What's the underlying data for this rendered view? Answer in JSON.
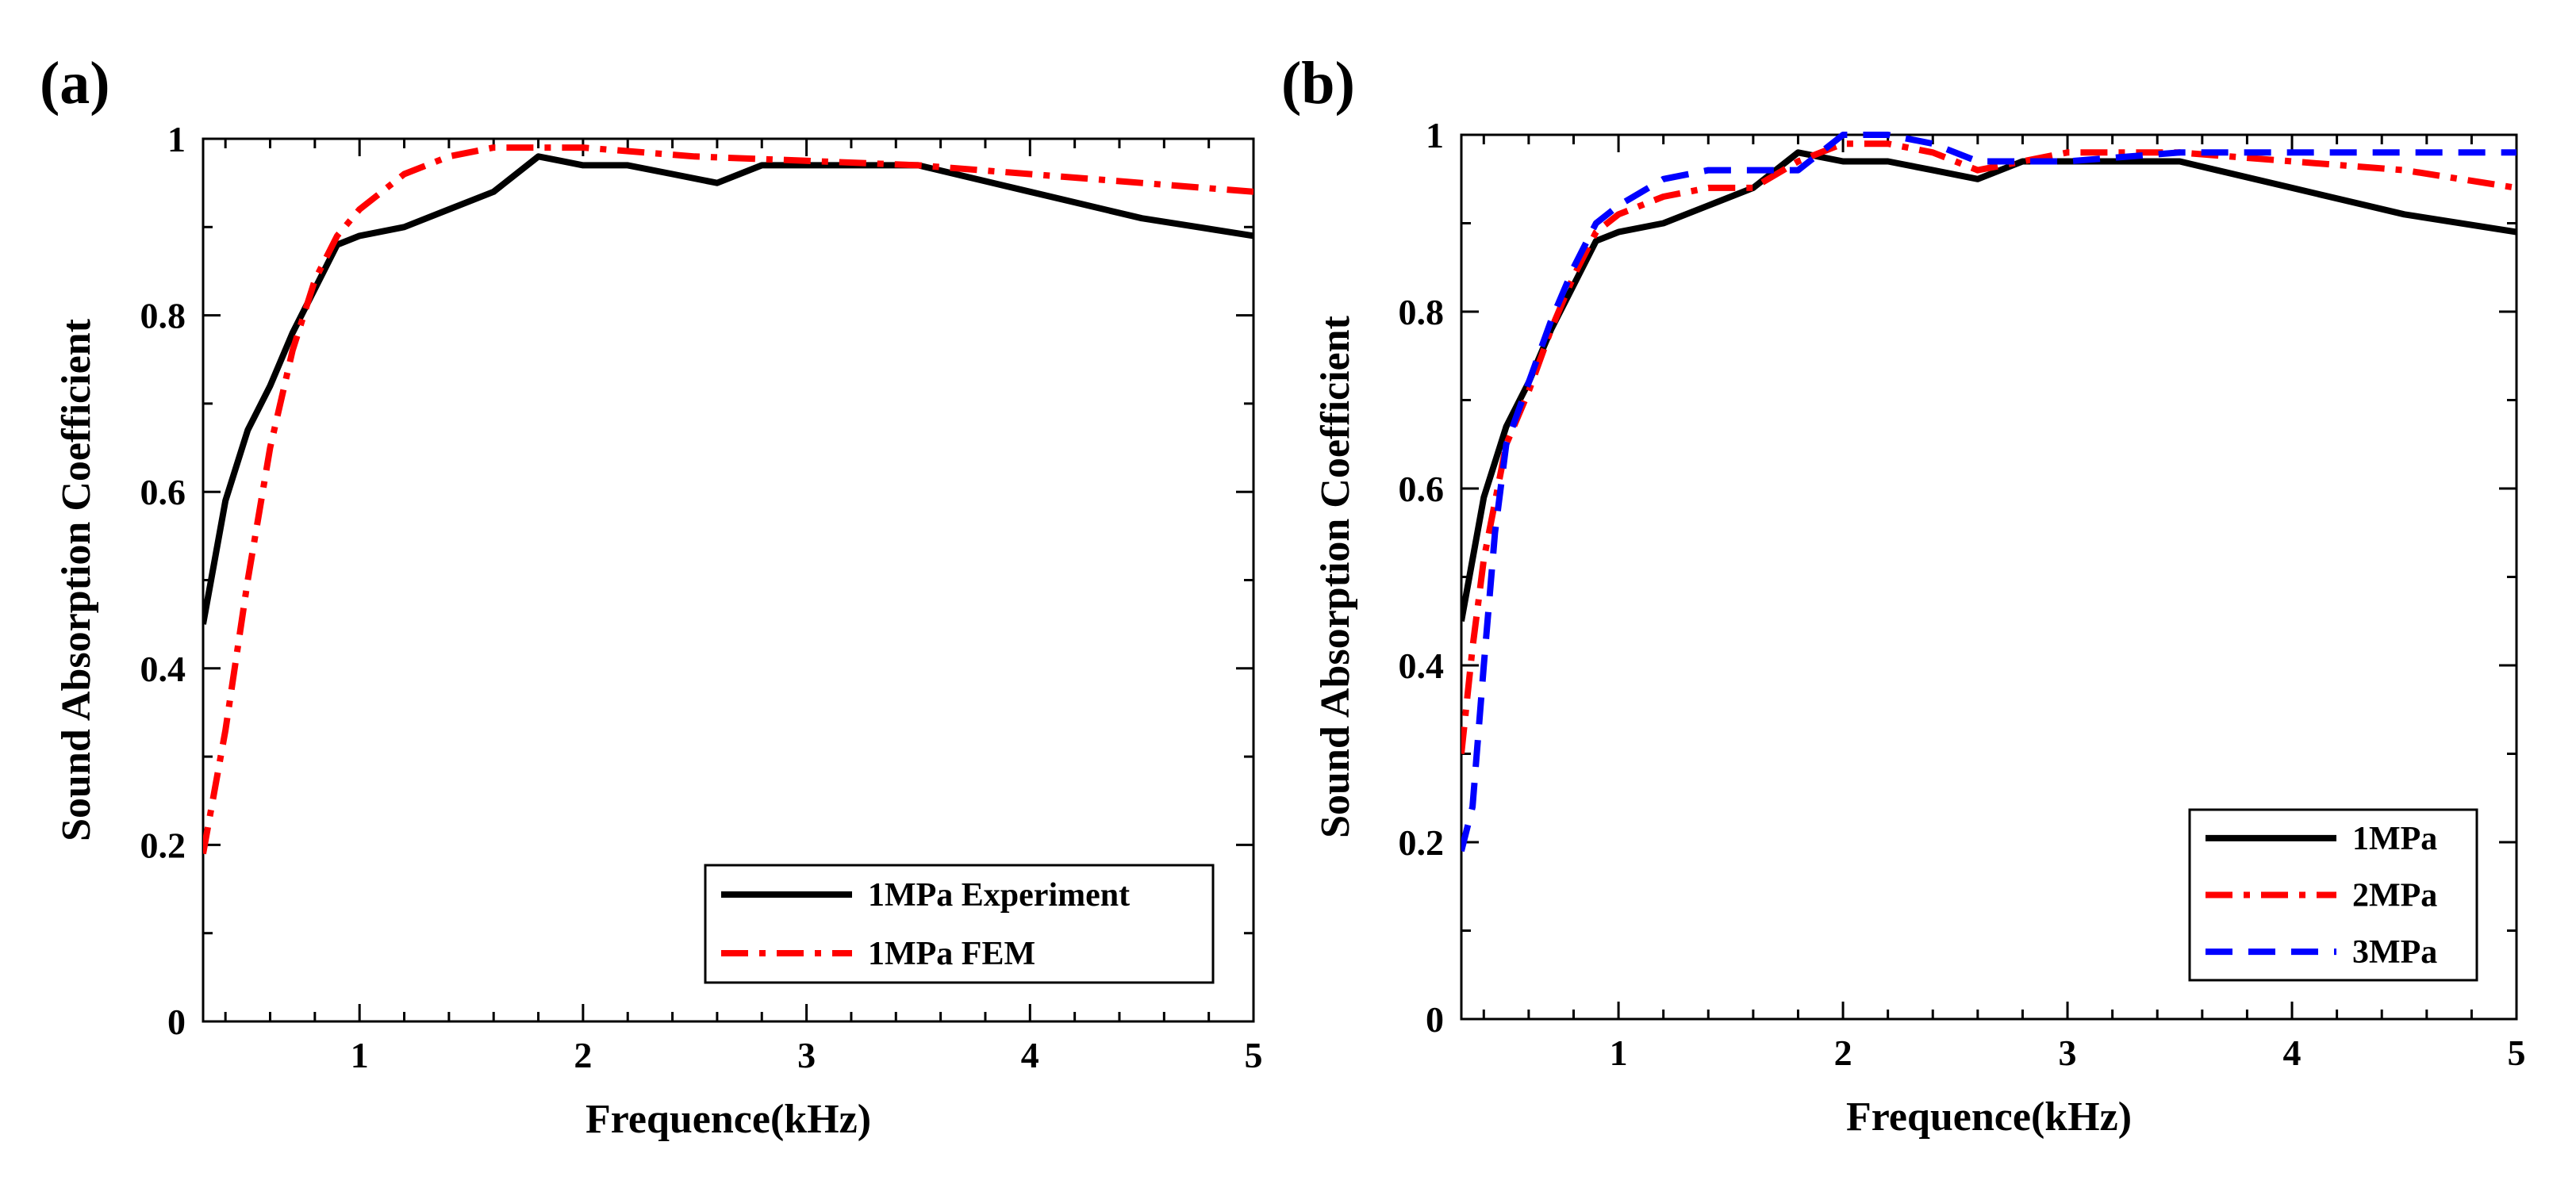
{
  "chart_data": [
    {
      "type": "line",
      "panel_label": "(a)",
      "xlabel": "Frequence(kHz)",
      "ylabel": "Sound Absorption Coefficient",
      "xlim": [
        0.3,
        5
      ],
      "ylim": [
        0,
        1
      ],
      "xticks": [
        1,
        2,
        3,
        4,
        5
      ],
      "yticks": [
        0,
        0.2,
        0.4,
        0.6,
        0.8,
        1
      ],
      "ytick_labels": [
        "0",
        "0.2",
        "0.4",
        "0.6",
        "0.8",
        "1"
      ],
      "legend_position": "bottom-right",
      "grid": false,
      "series": [
        {
          "name": "1MPa Experiment",
          "color": "#000000",
          "style": "solid",
          "x": [
            0.3,
            0.4,
            0.5,
            0.6,
            0.7,
            0.8,
            0.9,
            1.0,
            1.2,
            1.4,
            1.6,
            1.8,
            1.9,
            2.0,
            2.2,
            2.4,
            2.6,
            2.8,
            3.0,
            3.5,
            4.0,
            4.5,
            5.0
          ],
          "y": [
            0.45,
            0.59,
            0.67,
            0.72,
            0.78,
            0.83,
            0.88,
            0.89,
            0.9,
            0.92,
            0.94,
            0.98,
            0.975,
            0.97,
            0.97,
            0.96,
            0.95,
            0.97,
            0.97,
            0.97,
            0.94,
            0.91,
            0.89
          ]
        },
        {
          "name": "1MPa FEM",
          "color": "#ff0000",
          "style": "dashdot",
          "x": [
            0.3,
            0.4,
            0.5,
            0.6,
            0.7,
            0.8,
            0.9,
            1.0,
            1.1,
            1.2,
            1.4,
            1.6,
            1.8,
            2.0,
            2.5,
            3.0,
            3.5,
            4.0,
            4.5,
            5.0
          ],
          "y": [
            0.19,
            0.33,
            0.5,
            0.65,
            0.76,
            0.84,
            0.89,
            0.92,
            0.94,
            0.96,
            0.98,
            0.99,
            0.99,
            0.99,
            0.98,
            0.975,
            0.97,
            0.96,
            0.95,
            0.94
          ]
        }
      ]
    },
    {
      "type": "line",
      "panel_label": "(b)",
      "xlabel": "Frequence(kHz)",
      "ylabel": "Sound Absorption Coefficient",
      "xlim": [
        0.3,
        5
      ],
      "ylim": [
        0,
        1
      ],
      "xticks": [
        1,
        2,
        3,
        4,
        5
      ],
      "yticks": [
        0,
        0.2,
        0.4,
        0.6,
        0.8,
        1
      ],
      "ytick_labels": [
        "0",
        "0.2",
        "0.4",
        "0.6",
        "0.8",
        "1"
      ],
      "legend_position": "bottom-right",
      "grid": false,
      "series": [
        {
          "name": "1MPa",
          "color": "#000000",
          "style": "solid",
          "x": [
            0.3,
            0.4,
            0.5,
            0.6,
            0.7,
            0.8,
            0.9,
            1.0,
            1.2,
            1.4,
            1.6,
            1.8,
            1.9,
            2.0,
            2.2,
            2.4,
            2.6,
            2.8,
            3.0,
            3.5,
            4.0,
            4.5,
            5.0
          ],
          "y": [
            0.45,
            0.59,
            0.67,
            0.72,
            0.78,
            0.83,
            0.88,
            0.89,
            0.9,
            0.92,
            0.94,
            0.98,
            0.975,
            0.97,
            0.97,
            0.96,
            0.95,
            0.97,
            0.97,
            0.97,
            0.94,
            0.91,
            0.89
          ]
        },
        {
          "name": "2MPa",
          "color": "#ff0000",
          "style": "dashdot",
          "x": [
            0.3,
            0.35,
            0.4,
            0.5,
            0.6,
            0.7,
            0.8,
            0.9,
            1.0,
            1.2,
            1.4,
            1.6,
            1.8,
            2.0,
            2.2,
            2.4,
            2.6,
            2.8,
            3.0,
            3.5,
            4.0,
            4.5,
            5.0
          ],
          "y": [
            0.3,
            0.42,
            0.52,
            0.65,
            0.71,
            0.78,
            0.84,
            0.89,
            0.91,
            0.93,
            0.94,
            0.94,
            0.97,
            0.99,
            0.99,
            0.98,
            0.96,
            0.97,
            0.98,
            0.98,
            0.97,
            0.96,
            0.94
          ]
        },
        {
          "name": "3MPa",
          "color": "#0000ff",
          "style": "dashed",
          "x": [
            0.3,
            0.35,
            0.4,
            0.45,
            0.5,
            0.6,
            0.7,
            0.8,
            0.9,
            1.0,
            1.2,
            1.4,
            1.6,
            1.8,
            1.9,
            2.0,
            2.2,
            2.4,
            2.6,
            2.8,
            3.0,
            3.5,
            4.0,
            4.5,
            5.0
          ],
          "y": [
            0.19,
            0.24,
            0.4,
            0.55,
            0.65,
            0.72,
            0.79,
            0.85,
            0.9,
            0.92,
            0.95,
            0.96,
            0.96,
            0.96,
            0.98,
            1.0,
            1.0,
            0.99,
            0.97,
            0.97,
            0.97,
            0.98,
            0.98,
            0.98,
            0.98
          ]
        }
      ]
    }
  ]
}
